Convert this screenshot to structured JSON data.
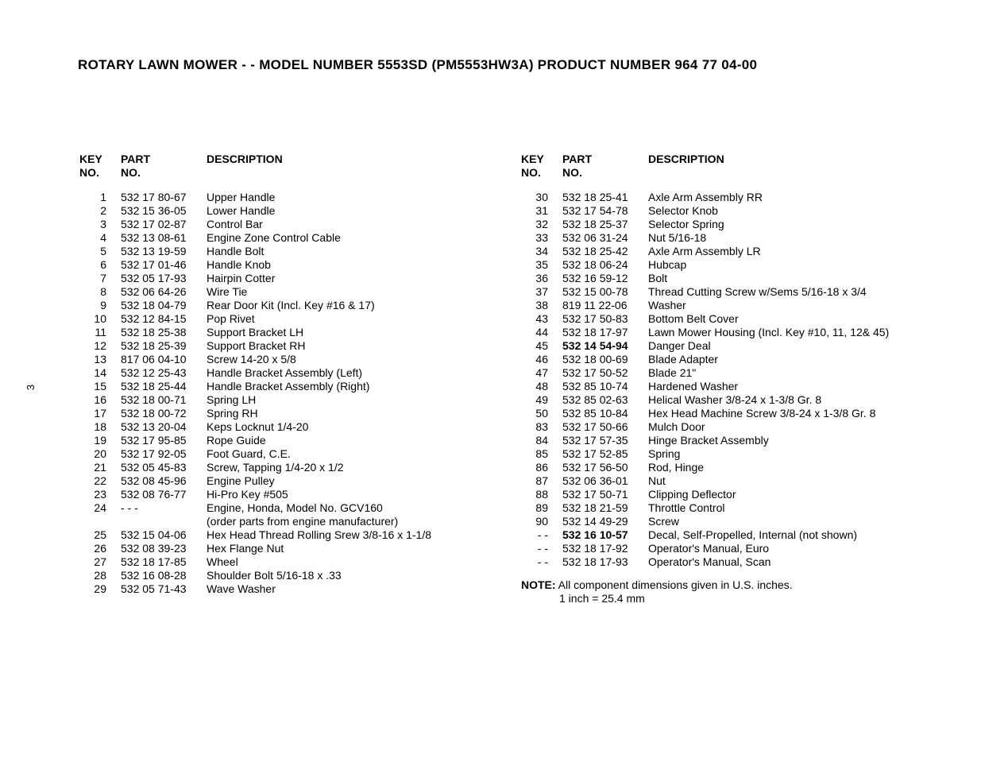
{
  "title": "ROTARY LAWN MOWER - - MODEL NUMBER 5553SD (PM5553HW3A) PRODUCT NUMBER 964 77 04-00",
  "page_number": "3",
  "headers": {
    "key_line1": "KEY",
    "key_line2": "NO.",
    "part_line1": "PART",
    "part_line2": "NO.",
    "desc_line1": "",
    "desc_line2": "DESCRIPTION"
  },
  "left_rows": [
    {
      "key": "1",
      "part": "532 17 80-67",
      "desc": "Upper Handle"
    },
    {
      "key": "2",
      "part": "532 15 36-05",
      "desc": "Lower Handle"
    },
    {
      "key": "3",
      "part": "532 17 02-87",
      "desc": "Control Bar"
    },
    {
      "key": "4",
      "part": "532 13 08-61",
      "desc": "Engine Zone Control Cable"
    },
    {
      "key": "5",
      "part": "532 13 19-59",
      "desc": "Handle Bolt"
    },
    {
      "key": "6",
      "part": "532 17 01-46",
      "desc": "Handle Knob"
    },
    {
      "key": "7",
      "part": "532 05 17-93",
      "desc": "Hairpin Cotter"
    },
    {
      "key": "8",
      "part": "532 06 64-26",
      "desc": "Wire Tie"
    },
    {
      "key": "9",
      "part": "532 18 04-79",
      "desc": "Rear Door Kit (Incl. Key #16 & 17)"
    },
    {
      "key": "10",
      "part": "532 12 84-15",
      "desc": "Pop Rivet"
    },
    {
      "key": "11",
      "part": "532 18 25-38",
      "desc": "Support Bracket LH"
    },
    {
      "key": "12",
      "part": "532 18 25-39",
      "desc": "Support Bracket RH"
    },
    {
      "key": "13",
      "part": "817 06 04-10",
      "desc": "Screw 14-20 x 5/8"
    },
    {
      "key": "14",
      "part": "532 12 25-43",
      "desc": "Handle Bracket Assembly (Left)"
    },
    {
      "key": "15",
      "part": "532 18 25-44",
      "desc": "Handle Bracket Assembly (Right)"
    },
    {
      "key": "16",
      "part": "532 18 00-71",
      "desc": "Spring LH"
    },
    {
      "key": "17",
      "part": "532 18 00-72",
      "desc": "Spring RH"
    },
    {
      "key": "18",
      "part": "532 13 20-04",
      "desc": "Keps Locknut  1/4-20"
    },
    {
      "key": "19",
      "part": "532 17 95-85",
      "desc": "Rope Guide"
    },
    {
      "key": "20",
      "part": "532 17 92-05",
      "desc": "Foot Guard, C.E."
    },
    {
      "key": "21",
      "part": "532 05 45-83",
      "desc": "Screw, Tapping 1/4-20 x 1/2"
    },
    {
      "key": "22",
      "part": "532 08 45-96",
      "desc": "Engine Pulley"
    },
    {
      "key": "23",
      "part": "532 08 76-77",
      "desc": "Hi-Pro Key  #505"
    },
    {
      "key": "24",
      "part": "- - -",
      "desc": "Engine, Honda, Model No. GCV160",
      "sub": "(order parts from engine manufacturer)"
    },
    {
      "key": "25",
      "part": "532 15 04-06",
      "desc": "Hex Head Thread Rolling Srew 3/8-16 x 1-1/8"
    },
    {
      "key": "26",
      "part": "532 08 39-23",
      "desc": "Hex Flange Nut"
    },
    {
      "key": "27",
      "part": "532 18 17-85",
      "desc": "Wheel"
    },
    {
      "key": "28",
      "part": "532 16 08-28",
      "desc": "Shoulder Bolt  5/16-18 x .33"
    },
    {
      "key": "29",
      "part": "532 05 71-43",
      "desc": "Wave Washer"
    }
  ],
  "right_rows": [
    {
      "key": "30",
      "part": "532 18 25-41",
      "desc": "Axle Arm Assembly RR"
    },
    {
      "key": "31",
      "part": "532 17 54-78",
      "desc": "Selector Knob"
    },
    {
      "key": "32",
      "part": "532 18 25-37",
      "desc": "Selector Spring"
    },
    {
      "key": "33",
      "part": "532 06 31-24",
      "desc": "Nut 5/16-18"
    },
    {
      "key": "34",
      "part": "532 18 25-42",
      "desc": "Axle Arm Assembly LR"
    },
    {
      "key": "35",
      "part": "532 18 06-24",
      "desc": "Hubcap"
    },
    {
      "key": "36",
      "part": "532 16 59-12",
      "desc": "Bolt"
    },
    {
      "key": "37",
      "part": "532 15 00-78",
      "desc": "Thread Cutting Screw w/Sems  5/16-18 x 3/4"
    },
    {
      "key": "38",
      "part": "819 11 22-06",
      "desc": "Washer"
    },
    {
      "key": "43",
      "part": "532 17 50-83",
      "desc": "Bottom Belt Cover"
    },
    {
      "key": "44",
      "part": "532 18 17-97",
      "desc": "Lawn Mower Housing (Incl. Key #10, 11, 12& 45)"
    },
    {
      "key": "45",
      "part": "532 14 54-94",
      "desc": "Danger Deal",
      "bold": true
    },
    {
      "key": "46",
      "part": "532 18 00-69",
      "desc": "Blade Adapter"
    },
    {
      "key": "47",
      "part": "532 17 50-52",
      "desc": "Blade 21\""
    },
    {
      "key": "48",
      "part": "532 85 10-74",
      "desc": "Hardened Washer"
    },
    {
      "key": "49",
      "part": "532 85 02-63",
      "desc": "Helical Washer  3/8-24 x 1-3/8 Gr. 8"
    },
    {
      "key": "50",
      "part": "532 85 10-84",
      "desc": "Hex Head Machine Screw  3/8-24 x 1-3/8 Gr. 8"
    },
    {
      "key": "83",
      "part": "532 17 50-66",
      "desc": "Mulch Door"
    },
    {
      "key": "84",
      "part": "532 17 57-35",
      "desc": "Hinge Bracket Assembly"
    },
    {
      "key": "85",
      "part": "532 17 52-85",
      "desc": "Spring"
    },
    {
      "key": "86",
      "part": "532 17 56-50",
      "desc": "Rod, Hinge"
    },
    {
      "key": "87",
      "part": "532 06 36-01",
      "desc": "Nut"
    },
    {
      "key": "88",
      "part": "532 17 50-71",
      "desc": "Clipping Deflector"
    },
    {
      "key": "89",
      "part": "532 18 21-59",
      "desc": "Throttle Control"
    },
    {
      "key": "90",
      "part": "532 14 49-29",
      "desc": "Screw"
    },
    {
      "key": "- -",
      "part": "532 16 10-57",
      "desc": "Decal, Self-Propelled, Internal (not shown)",
      "bold": true
    },
    {
      "key": "- -",
      "part": "532 18 17-92",
      "desc": "Operator's Manual, Euro"
    },
    {
      "key": "- -",
      "part": "532 18 17-93",
      "desc": "Operator's Manual, Scan"
    }
  ],
  "note": {
    "label": "NOTE:",
    "text": " All component dimensions given in U.S. inches.",
    "line2": "1 inch = 25.4 mm"
  }
}
